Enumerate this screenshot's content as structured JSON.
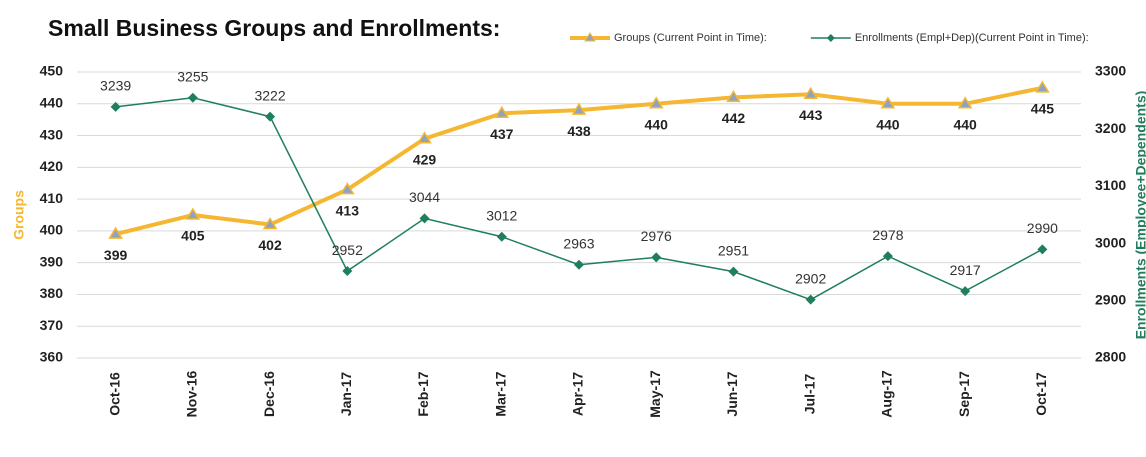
{
  "chart_data": {
    "type": "line",
    "title": "Small Business Groups and Enrollments:",
    "y_label": "Groups",
    "y2_label": "Enrollments (Employee+Dependents)",
    "categories": [
      "Oct-16",
      "Nov-16",
      "Dec-16",
      "Jan-17",
      "Feb-17",
      "Mar-17",
      "Apr-17",
      "May-17",
      "Jun-17",
      "Jul-17",
      "Aug-17",
      "Sep-17",
      "Oct-17"
    ],
    "series": [
      {
        "name": "Groups (Current Point in Time):",
        "color": "#f5b731",
        "values": [
          399,
          405,
          402,
          413,
          429,
          437,
          438,
          440,
          442,
          443,
          440,
          440,
          445
        ]
      },
      {
        "name": "Enrollments (Empl+Dep)(Current Point in Time):",
        "color": "#1e7f5a",
        "axis": "y2",
        "values": [
          3239,
          3255,
          3222,
          2952,
          3044,
          3012,
          2963,
          2976,
          2951,
          2902,
          2978,
          2917,
          2990
        ]
      }
    ],
    "ylim": [
      360,
      450
    ],
    "yticks": [
      360,
      370,
      380,
      390,
      400,
      410,
      420,
      430,
      440,
      450
    ],
    "y2lim": [
      2800,
      3300
    ],
    "y2ticks": [
      2800,
      2900,
      3000,
      3100,
      3200,
      3300
    ],
    "grid": true
  }
}
